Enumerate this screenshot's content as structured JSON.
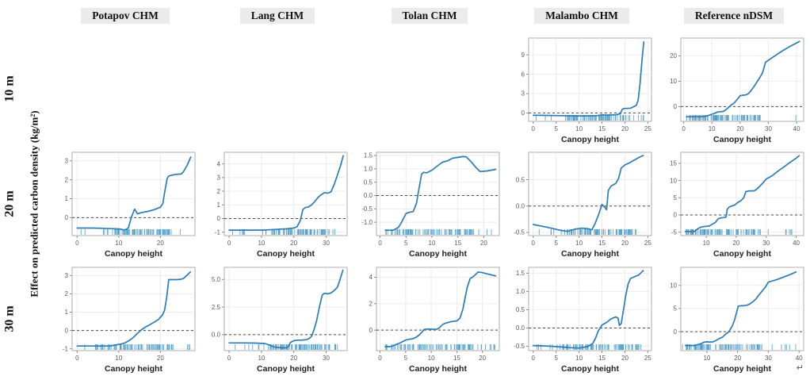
{
  "figure": {
    "ylabel": "Effect on predicted carbon density (kg/m²)",
    "xlabel": "Canopy height",
    "row_labels": [
      "10 m",
      "20 m",
      "30 m"
    ],
    "col_headers": [
      "Potapov CHM",
      "Lang CHM",
      "Tolan CHM",
      "Malambo CHM",
      "Reference nDSM"
    ],
    "corner_glyph": "↵",
    "colors": {
      "line": "#2b7cb8",
      "rug": "#4e9dc8",
      "zero_line": "#4a4a4a",
      "grid": "#ebebeb",
      "panel_border": "#adadad",
      "tick_text": "#5a5a5a",
      "axis_title_text": "#222222",
      "header_bg": "#ebebeb"
    }
  },
  "chart_data": [
    {
      "type": "line",
      "row": 0,
      "col": 3,
      "row_label": "10 m",
      "col_label": "Malambo CHM",
      "xlabel": "Canopy height",
      "x": [
        0,
        3,
        6,
        9,
        12,
        14,
        15,
        16,
        17,
        18,
        19,
        19.4,
        19.8,
        20.5,
        21.3,
        22,
        22.5,
        22.9,
        23.3,
        23.7,
        24.1
      ],
      "y": [
        -0.35,
        -0.38,
        -0.42,
        -0.45,
        -0.45,
        -0.4,
        -0.28,
        -0.33,
        -0.3,
        -0.28,
        -0.15,
        0.55,
        0.7,
        0.72,
        0.75,
        1.0,
        1.2,
        2.0,
        4.5,
        8.0,
        11.0
      ],
      "xticks": [
        0,
        5,
        10,
        15,
        20,
        25
      ],
      "yticks": [
        "0",
        "3",
        "6",
        "9"
      ],
      "xlim": [
        -1,
        25.8
      ],
      "ylim": [
        -1.3,
        11.6
      ],
      "rug": {
        "min": 0.5,
        "max": 24.5,
        "count": 85,
        "seed": 11,
        "cluster": [
          7,
          22
        ]
      }
    },
    {
      "type": "line",
      "row": 0,
      "col": 4,
      "row_label": "10 m",
      "col_label": "Reference nDSM",
      "xlabel": "Canopy height",
      "x": [
        1,
        4,
        6,
        7,
        8,
        9,
        10,
        11,
        12,
        13,
        14,
        15,
        16,
        17,
        18,
        19,
        20,
        21,
        22,
        23,
        24,
        25,
        26,
        27,
        28,
        29,
        31,
        33,
        35,
        37,
        39,
        41
      ],
      "y": [
        -4.0,
        -4.0,
        -4.0,
        -3.9,
        -3.7,
        -3.4,
        -3.0,
        -2.6,
        -2.1,
        -2.0,
        -1.9,
        -1.2,
        -0.2,
        0.8,
        1.5,
        2.9,
        4.3,
        4.5,
        4.6,
        5.2,
        6.5,
        8.0,
        9.8,
        11.5,
        13.5,
        17.5,
        19.0,
        20.5,
        22.0,
        23.3,
        24.5,
        25.7
      ],
      "xticks": [
        0,
        10,
        20,
        30,
        40
      ],
      "yticks": [
        "0",
        "10",
        "20"
      ],
      "xlim": [
        -1,
        42.5
      ],
      "ylim": [
        -5.8,
        27
      ],
      "rug": {
        "min": 1,
        "max": 41,
        "count": 95,
        "seed": 12,
        "cluster": [
          2,
          28
        ]
      }
    },
    {
      "type": "line",
      "row": 1,
      "col": 0,
      "row_label": "20 m",
      "col_label": "Potapov CHM",
      "xlabel": "Canopy height",
      "x": [
        0,
        4,
        8,
        10,
        11.5,
        12.3,
        13,
        13.8,
        14.5,
        15.5,
        17,
        18.5,
        20,
        20.6,
        21,
        21.6,
        22,
        23.5,
        25,
        25.6,
        26.5,
        27.3
      ],
      "y": [
        -0.55,
        -0.55,
        -0.58,
        -0.6,
        -0.65,
        -0.55,
        0,
        0.45,
        0.2,
        0.27,
        0.33,
        0.42,
        0.55,
        0.75,
        1.3,
        2.05,
        2.2,
        2.28,
        2.3,
        2.45,
        2.8,
        3.2
      ],
      "xticks": [
        0,
        10,
        20
      ],
      "yticks": [
        "0",
        "1",
        "2",
        "3"
      ],
      "xlim": [
        -1.2,
        28.3
      ],
      "ylim": [
        -0.95,
        3.45
      ],
      "rug": {
        "min": 0.5,
        "max": 27.5,
        "count": 85,
        "seed": 21,
        "cluster": [
          9,
          23
        ]
      }
    },
    {
      "type": "line",
      "row": 1,
      "col": 1,
      "row_label": "20 m",
      "col_label": "Lang CHM",
      "xlabel": "Canopy height",
      "x": [
        0,
        5,
        10,
        14,
        18,
        20,
        21,
        22,
        22.8,
        23.5,
        24.5,
        25.5,
        26.5,
        27.5,
        28.5,
        29.5,
        30.5,
        31.5,
        32.5,
        33.5,
        34.5,
        35.3
      ],
      "y": [
        -0.85,
        -0.85,
        -0.85,
        -0.8,
        -0.75,
        -0.7,
        -0.6,
        -0.15,
        0.65,
        0.8,
        0.85,
        1.0,
        1.25,
        1.55,
        1.75,
        1.9,
        1.85,
        1.95,
        2.5,
        3.2,
        3.9,
        4.6
      ],
      "xticks": [
        0,
        10,
        20,
        30
      ],
      "yticks": [
        "-1",
        "0",
        "1",
        "2",
        "3",
        "4"
      ],
      "xlim": [
        -1.5,
        36.5
      ],
      "ylim": [
        -1.25,
        4.85
      ],
      "rug": {
        "min": 0.5,
        "max": 35.5,
        "count": 85,
        "seed": 22,
        "cluster": [
          13,
          33
        ]
      }
    },
    {
      "type": "line",
      "row": 1,
      "col": 2,
      "row_label": "20 m",
      "col_label": "Tolan CHM",
      "xlabel": "Canopy height",
      "x": [
        1,
        2.5,
        3.5,
        4,
        4.4,
        5,
        5.6,
        6.4,
        7,
        7.4,
        8,
        8.4,
        9,
        10,
        11,
        12,
        13,
        14,
        15,
        16,
        16.6,
        17.5,
        18.5,
        19.3,
        20.5,
        21.5,
        22.3
      ],
      "y": [
        -1.3,
        -1.3,
        -1.2,
        -1.05,
        -0.9,
        -0.67,
        -0.63,
        -0.6,
        -0.3,
        0.15,
        0.8,
        0.87,
        0.85,
        0.95,
        1.1,
        1.25,
        1.3,
        1.4,
        1.43,
        1.46,
        1.45,
        1.28,
        1.05,
        0.9,
        0.92,
        0.95,
        0.98
      ],
      "xticks": [
        0,
        5,
        10,
        15,
        20
      ],
      "yticks": [
        "-1.0",
        "-0.5",
        "0.0",
        "0.5",
        "1.0",
        "1.5"
      ],
      "xlim": [
        -0.7,
        23
      ],
      "ylim": [
        -1.5,
        1.62
      ],
      "rug": {
        "min": 1,
        "max": 22.5,
        "count": 90,
        "seed": 23,
        "cluster": [
          2,
          18
        ]
      }
    },
    {
      "type": "line",
      "row": 1,
      "col": 3,
      "row_label": "20 m",
      "col_label": "Malambo CHM",
      "xlabel": "Canopy height",
      "x": [
        0,
        3,
        6,
        7.5,
        9,
        10.5,
        12,
        12.8,
        13.5,
        14.3,
        15,
        15.6,
        16,
        16.4,
        17,
        18,
        18.6,
        19.2,
        20,
        21,
        22,
        23,
        24
      ],
      "y": [
        -0.35,
        -0.4,
        -0.46,
        -0.48,
        -0.44,
        -0.42,
        -0.43,
        -0.45,
        -0.33,
        -0.15,
        0.03,
        -0.02,
        -0.07,
        0.3,
        0.38,
        0.43,
        0.52,
        0.72,
        0.78,
        0.82,
        0.87,
        0.92,
        0.96
      ],
      "xticks": [
        0,
        5,
        10,
        15,
        20,
        25
      ],
      "yticks": [
        "-0.5",
        "0.0",
        "0.5"
      ],
      "xlim": [
        -1,
        25.8
      ],
      "ylim": [
        -0.56,
        1.02
      ],
      "rug": {
        "min": 0.5,
        "max": 24.5,
        "count": 85,
        "seed": 24,
        "cluster": [
          7,
          22
        ]
      }
    },
    {
      "type": "line",
      "row": 1,
      "col": 4,
      "row_label": "20 m",
      "col_label": "Reference nDSM",
      "xlabel": "Canopy height",
      "x": [
        3,
        6,
        7,
        8,
        9,
        10,
        11,
        12,
        13,
        14,
        15,
        16,
        16.6,
        17,
        17.6,
        18.5,
        19.5,
        20.5,
        21.5,
        22.5,
        23.2,
        24.5,
        26,
        27,
        28,
        29,
        30,
        32,
        34,
        36,
        38,
        40,
        41
      ],
      "y": [
        -4.8,
        -4.8,
        -4.1,
        -3.6,
        -3.4,
        -3.3,
        -3.2,
        -2.7,
        -2.2,
        -1.1,
        -0.85,
        -0.75,
        -0.6,
        1.6,
        2.3,
        2.6,
        2.9,
        3.6,
        4.1,
        5.0,
        6.8,
        7.0,
        7.0,
        7.6,
        8.5,
        9.4,
        10.4,
        11.4,
        12.8,
        14.0,
        15.3,
        16.5,
        17.2
      ],
      "xticks": [
        10,
        20,
        30,
        40
      ],
      "yticks": [
        "-5",
        "0",
        "5",
        "10",
        "15"
      ],
      "xlim": [
        1.5,
        42.5
      ],
      "ylim": [
        -6,
        18.2
      ],
      "rug": {
        "min": 2,
        "max": 41,
        "count": 95,
        "seed": 25,
        "cluster": [
          3,
          28
        ]
      }
    },
    {
      "type": "line",
      "row": 2,
      "col": 0,
      "row_label": "30 m",
      "col_label": "Potapov CHM",
      "xlabel": "Canopy height",
      "x": [
        0,
        4,
        8,
        9.5,
        10.5,
        11.5,
        12.5,
        13.5,
        14.5,
        15.5,
        16.5,
        17.5,
        18.5,
        19.5,
        20.5,
        21,
        21.5,
        22,
        23,
        24,
        25,
        25.6,
        26.3,
        27.2
      ],
      "y": [
        -0.85,
        -0.85,
        -0.85,
        -0.78,
        -0.74,
        -0.68,
        -0.55,
        -0.38,
        -0.15,
        0.05,
        0.2,
        0.32,
        0.45,
        0.6,
        0.85,
        1.1,
        1.8,
        2.78,
        2.78,
        2.78,
        2.8,
        2.85,
        3.0,
        3.2
      ],
      "xticks": [
        0,
        10,
        20
      ],
      "yticks": [
        "-1",
        "0",
        "1",
        "2",
        "3"
      ],
      "xlim": [
        -1.2,
        28.3
      ],
      "ylim": [
        -1.1,
        3.45
      ],
      "rug": {
        "min": 0.5,
        "max": 27.5,
        "count": 85,
        "seed": 31,
        "cluster": [
          4,
          23
        ]
      }
    },
    {
      "type": "line",
      "row": 2,
      "col": 1,
      "row_label": "30 m",
      "col_label": "Lang CHM",
      "xlabel": "Canopy height",
      "x": [
        0,
        4,
        8,
        11,
        12.5,
        13.5,
        14.5,
        16,
        17.5,
        18.3,
        19,
        20,
        21,
        22.5,
        24,
        25,
        25.6,
        26.3,
        27,
        28,
        28.8,
        29.5,
        30.5,
        31.5,
        32.5,
        33.5,
        34.3,
        35.2
      ],
      "y": [
        -0.75,
        -0.75,
        -0.77,
        -0.8,
        -0.95,
        -1.08,
        -1.15,
        -1.2,
        -1.2,
        -1.1,
        -0.7,
        -0.55,
        -0.5,
        -0.5,
        -0.45,
        -0.3,
        -0.1,
        0.5,
        1.2,
        2.6,
        3.6,
        3.75,
        3.7,
        3.78,
        4.0,
        4.3,
        5.0,
        5.85
      ],
      "xticks": [
        0,
        10,
        20,
        30
      ],
      "yticks": [
        "0.0",
        "2.5",
        "5.0"
      ],
      "xlim": [
        -1.5,
        36.5
      ],
      "ylim": [
        -1.45,
        6.1
      ],
      "rug": {
        "min": 0.5,
        "max": 35.5,
        "count": 90,
        "seed": 32,
        "cluster": [
          12,
          33
        ]
      }
    },
    {
      "type": "line",
      "row": 2,
      "col": 2,
      "row_label": "30 m",
      "col_label": "Tolan CHM",
      "xlabel": "Canopy height",
      "x": [
        1,
        2,
        2.6,
        3.2,
        4,
        5,
        5.6,
        6.4,
        7,
        7.6,
        8.2,
        8.6,
        9.2,
        10,
        11,
        11.6,
        12.3,
        13,
        14,
        15,
        15.6,
        16.2,
        17,
        17.6,
        18.2,
        19.2,
        20,
        21,
        22,
        22.6
      ],
      "y": [
        -1.25,
        -1.25,
        -1.18,
        -1.08,
        -0.95,
        -0.75,
        -0.7,
        -0.65,
        -0.55,
        -0.38,
        -0.15,
        0.05,
        0.08,
        0.07,
        0.06,
        0.18,
        0.45,
        0.55,
        0.65,
        0.7,
        0.9,
        1.6,
        3.2,
        3.9,
        4.05,
        4.4,
        4.35,
        4.25,
        4.15,
        4.1
      ],
      "xticks": [
        0,
        5,
        10,
        15,
        20
      ],
      "yticks": [
        "0",
        "2",
        "4"
      ],
      "xlim": [
        -0.7,
        23.3
      ],
      "ylim": [
        -1.55,
        4.75
      ],
      "rug": {
        "min": 1,
        "max": 22.5,
        "count": 90,
        "seed": 33,
        "cluster": [
          2,
          18
        ]
      }
    },
    {
      "type": "line",
      "row": 2,
      "col": 3,
      "row_label": "30 m",
      "col_label": "Malambo CHM",
      "xlabel": "Canopy height",
      "x": [
        0,
        2,
        4,
        6,
        8,
        10,
        11,
        12,
        13,
        13.6,
        14.2,
        15,
        16,
        17,
        18,
        18.5,
        18.8,
        19.2,
        19.7,
        20.2,
        20.7,
        21.2,
        22,
        23,
        24
      ],
      "y": [
        -0.48,
        -0.49,
        -0.5,
        -0.52,
        -0.54,
        -0.55,
        -0.53,
        -0.5,
        -0.42,
        -0.28,
        -0.08,
        0.08,
        0.15,
        0.25,
        0.3,
        0.27,
        0.07,
        0.12,
        0.5,
        0.9,
        1.2,
        1.35,
        1.4,
        1.45,
        1.57
      ],
      "xticks": [
        0,
        5,
        10,
        15,
        20,
        25
      ],
      "yticks": [
        "-0.5",
        "0.0",
        "0.5",
        "1.0",
        "1.5"
      ],
      "xlim": [
        -1,
        25.8
      ],
      "ylim": [
        -0.62,
        1.66
      ],
      "rug": {
        "min": 0.5,
        "max": 24.5,
        "count": 85,
        "seed": 34,
        "cluster": [
          7,
          23
        ]
      }
    },
    {
      "type": "line",
      "row": 2,
      "col": 4,
      "row_label": "30 m",
      "col_label": "Reference nDSM",
      "xlabel": "Canopy height",
      "x": [
        3,
        6,
        7,
        8,
        9,
        10,
        11,
        12,
        13,
        14,
        15,
        16,
        17,
        17.6,
        18.3,
        19,
        19.6,
        20.2,
        21,
        22,
        23,
        24,
        25,
        26,
        27,
        28,
        29,
        30,
        31,
        33,
        35,
        37,
        39
      ],
      "y": [
        -3.0,
        -3.0,
        -2.8,
        -2.6,
        -2.3,
        -2.2,
        -2.25,
        -2.2,
        -1.9,
        -1.5,
        -1.2,
        -0.6,
        -0.1,
        0.5,
        1.3,
        2.5,
        4.0,
        5.5,
        5.6,
        5.6,
        5.7,
        6.0,
        6.5,
        7.1,
        8.0,
        8.8,
        9.6,
        10.7,
        10.9,
        11.3,
        11.8,
        12.3,
        12.9
      ],
      "xticks": [
        10,
        20,
        30,
        40
      ],
      "yticks": [
        "0",
        "5",
        "10"
      ],
      "xlim": [
        1.5,
        41.5
      ],
      "ylim": [
        -4.1,
        13.9
      ],
      "rug": {
        "min": 2,
        "max": 40,
        "count": 95,
        "seed": 35,
        "cluster": [
          3,
          28
        ]
      }
    }
  ]
}
